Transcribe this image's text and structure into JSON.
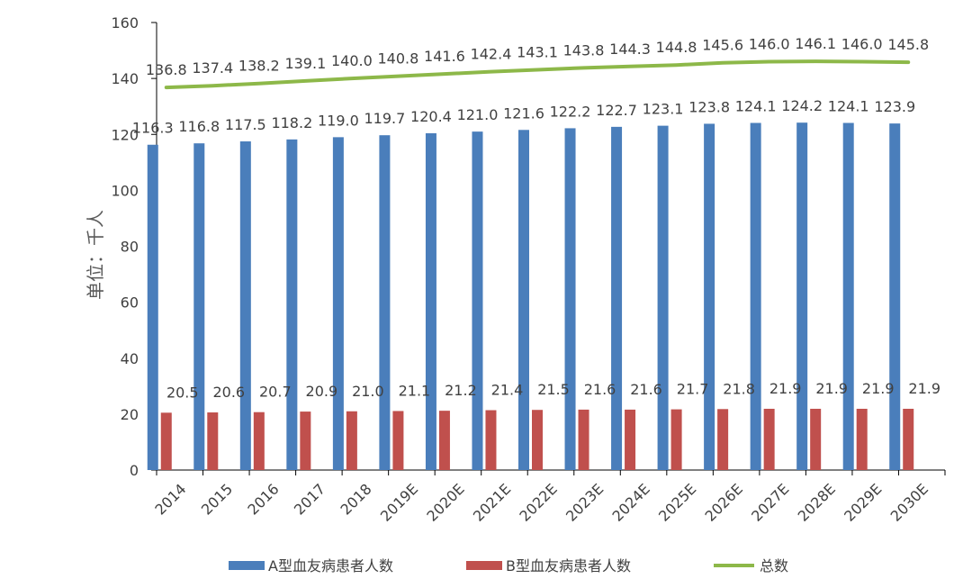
{
  "chart_data": {
    "type": "bar",
    "categories": [
      "2014",
      "2015",
      "2016",
      "2017",
      "2018",
      "2019E",
      "2020E",
      "2021E",
      "2022E",
      "2023E",
      "2024E",
      "2025E",
      "2026E",
      "2027E",
      "2028E",
      "2029E",
      "2030E"
    ],
    "series": [
      {
        "name": "A型血友病患者人数",
        "type": "bar",
        "color": "#4a7ebb",
        "values": [
          116.3,
          116.8,
          117.5,
          118.2,
          119.0,
          119.7,
          120.4,
          121.0,
          121.6,
          122.2,
          122.7,
          123.1,
          123.8,
          124.1,
          124.2,
          124.1,
          123.9
        ]
      },
      {
        "name": "B型血友病患者人数",
        "type": "bar",
        "color": "#c0504d",
        "values": [
          20.5,
          20.6,
          20.7,
          20.9,
          21.0,
          21.1,
          21.2,
          21.4,
          21.5,
          21.6,
          21.6,
          21.7,
          21.8,
          21.9,
          21.9,
          21.9,
          21.9
        ]
      },
      {
        "name": "总数",
        "type": "line",
        "color": "#8db849",
        "values": [
          136.8,
          137.4,
          138.2,
          139.1,
          140.0,
          140.8,
          141.6,
          142.4,
          143.1,
          143.8,
          144.3,
          144.8,
          145.6,
          146.0,
          146.1,
          146.0,
          145.8
        ]
      }
    ],
    "ylabel": "单位：千人",
    "xlabel": "",
    "title": "",
    "ylim": [
      0,
      160
    ],
    "yticks": [
      0,
      20,
      40,
      60,
      80,
      100,
      120,
      140,
      160
    ],
    "grid": false,
    "legend": "bottom"
  }
}
